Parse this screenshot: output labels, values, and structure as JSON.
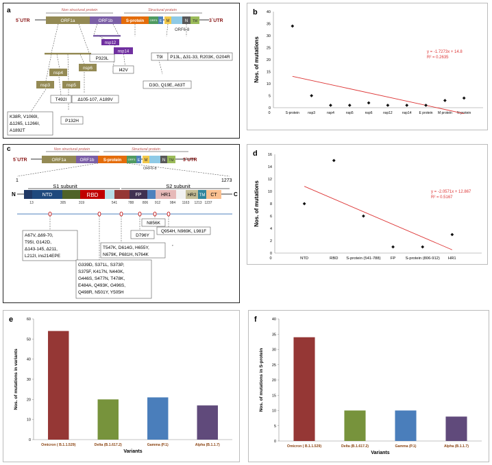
{
  "panel_a": {
    "letter": "a",
    "utr5": "5`UTR",
    "utr3": "3`UTR",
    "nonstructural": "Non structural protein",
    "structural": "Structural protein",
    "orf1a": "ORF1a",
    "orf1b": "ORF1b",
    "sprotein": "S-protein",
    "orf3": "ORF3",
    "e": "E",
    "m": "M",
    "n": "N",
    "tm": "TM",
    "orf68": "ORF6-8",
    "nsp12": "nsp12",
    "nsp14": "nsp14",
    "nsp3": "nsp3",
    "nsp4": "nsp4",
    "nsp5": "nsp5",
    "nsp6": "nsp6",
    "mut_nsp12": "P323L",
    "mut_nsp14": "I42V",
    "mut_s": "T9I",
    "mut_n": "P13L, Δ31-33, R203K, G204R",
    "mut_m": "D3G, Q19E, A63T",
    "mut_nsp6": "Δ105-107, A189V",
    "mut_nsp5": "P132H",
    "mut_nsp4": "T492I",
    "mut_nsp3": [
      "K38R, V1069I,",
      "Δ1265, L1266I,",
      "A1892T"
    ]
  },
  "panel_c": {
    "letter": "c",
    "utr5": "5`UTR",
    "utr3": "3`UTR",
    "nonstructural": "Non structural protein",
    "structural": "Structural protein",
    "orf1a": "ORF1a",
    "orf1b": "ORF1b",
    "sprotein": "S-protein",
    "orf3": "ORF3",
    "e": "E",
    "m": "M",
    "n": "N",
    "tm": "TM",
    "orf68": "ORF6-8",
    "start": "1",
    "end": "1273",
    "nterm": "N",
    "cterm": "C",
    "s1": "S1 subunit",
    "s2": "S2 subunit",
    "ntd": "NTD",
    "rbd": "RBD",
    "fp": "FP",
    "hr1": "HR1",
    "hr2": "HR2",
    "tm2": "TM",
    "ct": "CT",
    "positions": [
      "13",
      "305",
      "319",
      "541",
      "788",
      "806",
      "912",
      "984",
      "1163",
      "1213",
      "1237"
    ],
    "box_ntd": [
      "A67V, Δ69-70,",
      "T95I, G142D,",
      "Δ143-145, Δ211,",
      "L212I, ins214EPE"
    ],
    "box_rbd": [
      "G339D, S371L, S373P,",
      "S375F, K417N, N440K,",
      "G446S, S477N, T478K,",
      "E484A, Q493K, G496S,",
      "Q498R, N501Y, Y505H"
    ],
    "box_541": [
      "T547K, D614G, H655Y,",
      "N679K, P681H, N764K"
    ],
    "box_fp": "D796Y",
    "box_n856": "N856K",
    "box_hr1": "Q954H, N969K, L981F",
    "tick_mark": "’"
  },
  "chart_data": [
    {
      "panel": "b",
      "type": "scatter",
      "title": "",
      "ylabel": "Nos. of mutations",
      "categories": [
        "S-protein",
        "nsp3",
        "nsp4",
        "nsp5",
        "nsp6",
        "nsp12",
        "nsp14",
        "E protein",
        "M protein",
        "N protein"
      ],
      "values": [
        34,
        5,
        1,
        1,
        2,
        1,
        1,
        1,
        3,
        4
      ],
      "ylim": [
        0,
        40
      ],
      "yticks": [
        "0",
        "5",
        "10",
        "15",
        "20",
        "25",
        "30",
        "35",
        "40"
      ],
      "xorigin": "0",
      "equation": "y = -1.7273x + 14.8",
      "r2": "R² = 0.2635",
      "trend": [
        13.07,
        -2.47
      ]
    },
    {
      "panel": "d",
      "type": "scatter",
      "title": "",
      "ylabel": "Nos. of mutations",
      "categories": [
        "NTD",
        "RBD",
        "S-protein (541-788)",
        "FP",
        "S-protein (806-912)",
        "HR1"
      ],
      "values": [
        8,
        15,
        6,
        1,
        1,
        3
      ],
      "ylim": [
        0,
        16
      ],
      "yticks": [
        "0",
        "2",
        "4",
        "6",
        "8",
        "10",
        "12",
        "14",
        "16"
      ],
      "xorigin": "0",
      "equation": "y = -2.0571x + 12.867",
      "r2": "R² = 0.5167",
      "trend": [
        10.81,
        0.53
      ]
    },
    {
      "panel": "e",
      "type": "bar",
      "title": "",
      "xlabel": "Variants",
      "ylabel": "Nos. of mutations in  variants",
      "categories": [
        "Omicron ( B.1.1.529)",
        "Delta (B.1.617.2)",
        "Gamma (P.1)",
        "Alpha (B.1.1.7)"
      ],
      "values": [
        54,
        20,
        21,
        17
      ],
      "ylim": [
        0,
        60
      ],
      "yticks": [
        "0",
        "10",
        "20",
        "30",
        "40",
        "50",
        "60"
      ],
      "colors": [
        "#953735",
        "#77933c",
        "#4a7ebb",
        "#604a7b"
      ]
    },
    {
      "panel": "f",
      "type": "bar",
      "title": "",
      "xlabel": "Variants",
      "ylabel": "Nos. of mutations in  S-protein",
      "categories": [
        "Omicron ( B.1.1.529)",
        "Delta (B.1.617.2)",
        "Gamma (P.1)",
        "Alpha (B.1.1.7)"
      ],
      "values": [
        34,
        10,
        10,
        8
      ],
      "ylim": [
        0,
        40
      ],
      "yticks": [
        "0",
        "5",
        "10",
        "15",
        "20",
        "25",
        "30",
        "35",
        "40"
      ],
      "colors": [
        "#953735",
        "#77933c",
        "#4a7ebb",
        "#604a7b"
      ]
    }
  ]
}
